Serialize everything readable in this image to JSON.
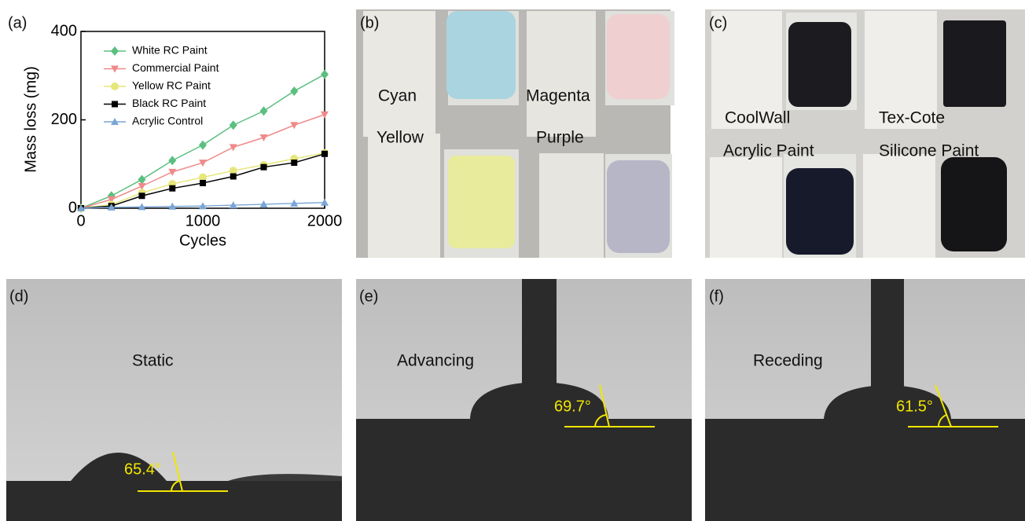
{
  "chart_data": {
    "type": "line",
    "panel_label": "(a)",
    "xlabel": "Cycles",
    "ylabel": "Mass loss (mg)",
    "x": [
      0,
      250,
      500,
      750,
      1000,
      1250,
      1500,
      1750,
      2000
    ],
    "xlim": [
      0,
      2000
    ],
    "xticks": [
      0,
      1000,
      2000
    ],
    "ylim": [
      0,
      400
    ],
    "yticks": [
      0,
      200,
      400
    ],
    "series": [
      {
        "name": "White RC Paint",
        "color": "#5cbf80",
        "marker": "diamond",
        "values": [
          0,
          28,
          65,
          108,
          143,
          188,
          220,
          265,
          303
        ]
      },
      {
        "name": "Commercial Paint",
        "color": "#f08a8a",
        "marker": "triangle-down",
        "values": [
          0,
          20,
          50,
          82,
          103,
          138,
          160,
          188,
          212
        ]
      },
      {
        "name": "Yellow RC Paint",
        "color": "#e6e67a",
        "marker": "circle",
        "values": [
          0,
          8,
          35,
          55,
          70,
          85,
          98,
          112,
          125
        ]
      },
      {
        "name": "Black RC Paint",
        "color": "#000000",
        "marker": "square",
        "values": [
          0,
          5,
          28,
          45,
          57,
          72,
          93,
          103,
          123
        ]
      },
      {
        "name": "Acrylic Control",
        "color": "#7aa6d6",
        "marker": "triangle-up",
        "values": [
          0,
          2,
          3,
          4,
          5,
          7,
          9,
          11,
          13
        ]
      }
    ]
  },
  "panel_b": {
    "label": "(b)",
    "samples": [
      "Cyan",
      "Magenta",
      "Yellow",
      "Purple"
    ]
  },
  "panel_c": {
    "label": "(c)",
    "samples": [
      "CoolWall",
      "Tex-Cote",
      "Acrylic Paint",
      "Silicone Paint"
    ]
  },
  "panel_d": {
    "label": "(d)",
    "mode": "Static",
    "angle": "65.4°"
  },
  "panel_e": {
    "label": "(e)",
    "mode": "Advancing",
    "angle": "69.7°"
  },
  "panel_f": {
    "label": "(f)",
    "mode": "Receding",
    "angle": "61.5°"
  }
}
